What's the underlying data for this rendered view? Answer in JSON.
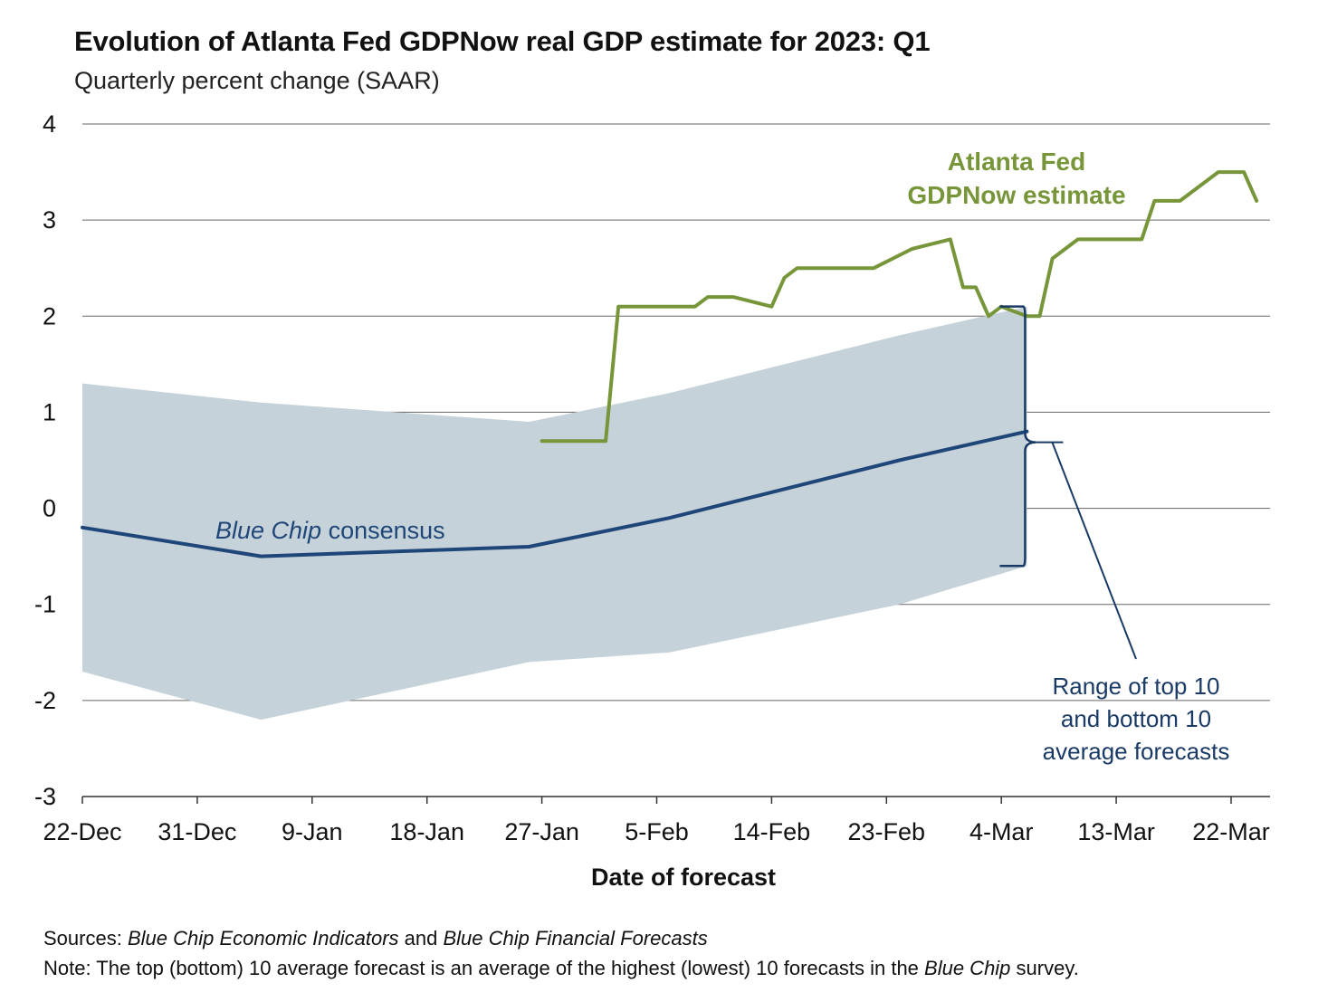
{
  "title": "Evolution of Atlanta Fed GDPNow real GDP estimate for 2023: Q1",
  "subtitle": "Quarterly percent change (SAAR)",
  "colors": {
    "gdpnow": "#77963a",
    "consensus": "#1f4678",
    "range": "#c5d2d9",
    "grid": "#555555",
    "annotation": "#1a3a66"
  },
  "chart_data": {
    "type": "line",
    "xlabel": "Date of forecast",
    "ylabel": "",
    "ylim": [
      -3,
      4
    ],
    "yticks": [
      "4",
      "3",
      "2",
      "1",
      "0",
      "-1",
      "-2",
      "-3"
    ],
    "xticks": [
      "22-Dec",
      "31-Dec",
      "9-Jan",
      "18-Jan",
      "27-Jan",
      "5-Feb",
      "14-Feb",
      "23-Feb",
      "4-Mar",
      "13-Mar",
      "22-Mar"
    ],
    "grid": true,
    "series": [
      {
        "name": "Atlanta Fed GDPNow estimate",
        "x": [
          "2023-01-27",
          "2023-02-01",
          "2023-02-02",
          "2023-02-08",
          "2023-02-09",
          "2023-02-11",
          "2023-02-14",
          "2023-02-15",
          "2023-02-16",
          "2023-02-22",
          "2023-02-25",
          "2023-02-28",
          "2023-03-01",
          "2023-03-02",
          "2023-03-03",
          "2023-03-04",
          "2023-03-06",
          "2023-03-07",
          "2023-03-08",
          "2023-03-10",
          "2023-03-15",
          "2023-03-16",
          "2023-03-18",
          "2023-03-21",
          "2023-03-23",
          "2023-03-24"
        ],
        "values": [
          0.7,
          0.7,
          2.1,
          2.1,
          2.2,
          2.2,
          2.1,
          2.4,
          2.5,
          2.5,
          2.7,
          2.8,
          2.3,
          2.3,
          2.0,
          2.1,
          2.0,
          2.0,
          2.6,
          2.8,
          2.8,
          3.2,
          3.2,
          3.5,
          3.5,
          3.2
        ]
      },
      {
        "name": "Blue Chip consensus",
        "x": [
          "2022-12-22",
          "2023-01-05",
          "2023-01-26",
          "2023-02-06",
          "2023-02-24",
          "2023-03-06"
        ],
        "values": [
          -0.2,
          -0.5,
          -0.4,
          -0.1,
          0.5,
          0.8
        ]
      }
    ],
    "range_band": {
      "name": "Range of top 10 and bottom 10 average forecasts",
      "x": [
        "2022-12-22",
        "2023-01-05",
        "2023-01-26",
        "2023-02-06",
        "2023-02-24",
        "2023-03-06"
      ],
      "top10": [
        1.3,
        1.1,
        0.9,
        1.2,
        1.8,
        2.1
      ],
      "bottom10": [
        -1.7,
        -2.2,
        -1.6,
        -1.5,
        -1.0,
        -0.6
      ]
    },
    "annotations": {
      "gdpnow_label": [
        "Atlanta Fed",
        "GDPNow estimate"
      ],
      "consensus_label_italic": "Blue Chip",
      "consensus_label_rest": " consensus",
      "range_label": [
        "Range of top 10",
        "and bottom 10",
        "average forecasts"
      ]
    }
  },
  "footer": {
    "sources_label": "Sources:",
    "sources_part1": "Blue Chip Economic Indicators",
    "sources_and": " and ",
    "sources_part2": "Blue Chip Financial Forecasts",
    "note_label": "Note:",
    "note_text": " The top (bottom) 10 average forecast is an average of the highest (lowest) 10 forecasts in the ",
    "note_italic": "Blue Chip",
    "note_end": " survey."
  }
}
